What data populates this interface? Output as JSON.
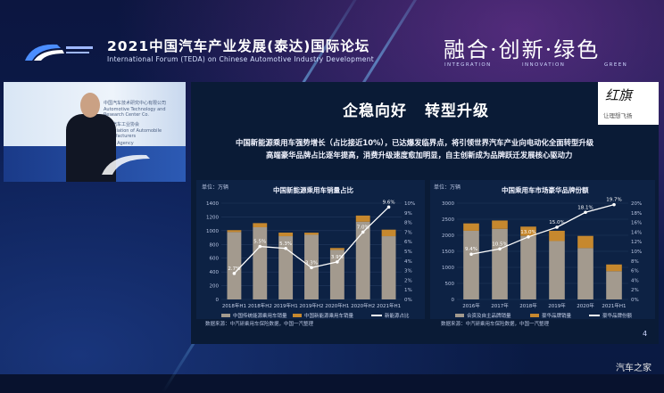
{
  "forum": {
    "title": "2021中国汽车产业发展(泰达)国际论坛",
    "subtitle": "International Forum (TEDA) on Chinese Automotive Industry Development",
    "slogan": "融合·创新·绿色",
    "slogan_words": [
      "INTEGRATION",
      "INNOVATION",
      "GREEN"
    ]
  },
  "video": {
    "wall_lines": [
      "中国汽车技术研究中心有限公司",
      "Automotive Technology and Research Center Co.",
      "中国汽车工业协会",
      "Association of Automobile Manufacturers",
      "News Agency"
    ]
  },
  "slide": {
    "title_left": "企稳向好",
    "title_right": "转型升级",
    "brand": "红旗",
    "brand_sub": "让理想飞扬",
    "line1": "中国新能源乘用车强势增长（占比接近10%），已达爆发临界点，将引领世界汽车产业向电动化全面转型升级",
    "line2": "高端豪华品牌占比逐年提高，消费升级速度愈加明显，自主创新成为品牌跃迁发展核心驱动力",
    "page": "4"
  },
  "charts": {
    "left": {
      "title": "中国新能源乘用车销量占比",
      "unit": "单位：万辆",
      "legend": [
        "中国传统能源乘用车销量",
        "中国新能源乘用车销量",
        "新能源占比"
      ],
      "source": "数据来源：中汽研乘用车保险数据，中国一汽整理"
    },
    "right": {
      "title": "中国乘用车市场豪华品牌份额",
      "unit": "单位：万辆",
      "legend": [
        "合资及自主品牌销量",
        "豪华品牌销量",
        "豪华品牌份额"
      ],
      "source": "数据来源：中汽研乘用车保险数据，中国一汽整理"
    }
  },
  "chart_data": [
    {
      "type": "bar",
      "title": "中国新能源乘用车销量占比",
      "categories": [
        "2018年H1",
        "2018年H2",
        "2019年H1",
        "2019年H2",
        "2020年H1",
        "2020年H2",
        "2021年H1"
      ],
      "series": [
        {
          "name": "中国传统能源乘用车销量",
          "values": [
            980,
            1050,
            920,
            940,
            720,
            1130,
            920
          ]
        },
        {
          "name": "中国新能源乘用车销量",
          "values": [
            28,
            60,
            52,
            31,
            28,
            90,
            95
          ]
        },
        {
          "name": "新能源占比",
          "values": [
            2.7,
            5.5,
            5.3,
            3.3,
            3.9,
            7.0,
            9.6
          ],
          "labels": [
            "2.7%",
            "5.5%",
            "5.3%",
            "3.3%",
            "3.9%",
            "7.0%",
            "9.6%"
          ]
        }
      ],
      "yticks": [
        "0",
        "200",
        "400",
        "600",
        "800",
        "1000",
        "1200",
        "1400"
      ],
      "y2ticks": [
        "0%",
        "1%",
        "2%",
        "3%",
        "4%",
        "5%",
        "6%",
        "7%",
        "8%",
        "9%",
        "10%"
      ],
      "ylim": [
        0,
        1400
      ],
      "y2lim": [
        0,
        10
      ]
    },
    {
      "type": "bar",
      "title": "中国乘用车市场豪华品牌份额",
      "categories": [
        "2016年",
        "2017年",
        "2018年",
        "2019年",
        "2020年",
        "2021年H1"
      ],
      "series": [
        {
          "name": "合资及自主品牌销量",
          "values": [
            2140,
            2200,
            1980,
            1820,
            1600,
            880
          ]
        },
        {
          "name": "豪华品牌销量",
          "values": [
            230,
            260,
            290,
            320,
            380,
            210
          ]
        },
        {
          "name": "豪华品牌份额",
          "values": [
            9.4,
            10.5,
            13.0,
            15.0,
            18.1,
            19.7
          ],
          "labels": [
            "9.4%",
            "10.5%",
            "13.0%",
            "15.0%",
            "18.1%",
            "19.7%"
          ]
        }
      ],
      "yticks": [
        "0",
        "500",
        "1000",
        "1500",
        "2000",
        "2500",
        "3000"
      ],
      "y2ticks": [
        "0%",
        "2%",
        "4%",
        "6%",
        "8%",
        "10%",
        "12%",
        "14%",
        "16%",
        "18%",
        "20%"
      ],
      "ylim": [
        0,
        3000
      ],
      "y2lim": [
        0,
        20
      ]
    }
  ],
  "watermark": "汽车之家",
  "colors": {
    "bar_main": "#a39a8e",
    "bar_accent": "#c6882e",
    "line": "#ffffff"
  }
}
